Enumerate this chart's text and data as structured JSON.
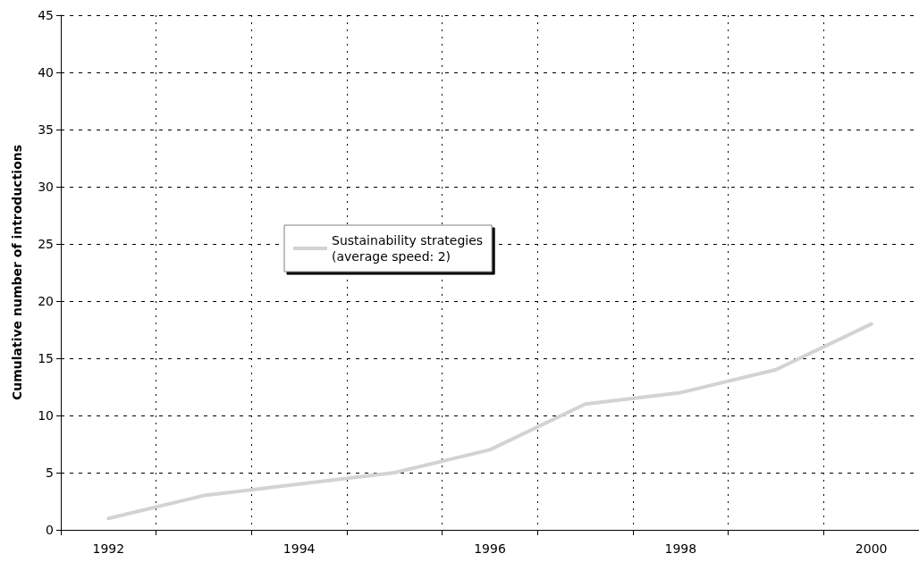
{
  "chart_data": {
    "type": "line",
    "ylabel": "Cumulative number of introductions",
    "categories": [
      "1992",
      null,
      "1994",
      null,
      "1996",
      null,
      "1998",
      null,
      "2000"
    ],
    "series": [
      {
        "name": "Sustainability strategies\n(average speed: 2)",
        "color": "#d3d3d3",
        "values": [
          1,
          3,
          4,
          5,
          7,
          11,
          12,
          14,
          18
        ]
      }
    ],
    "ylim": [
      0,
      45
    ],
    "yticks": [
      0,
      5,
      10,
      15,
      20,
      25,
      30,
      35,
      40,
      45
    ],
    "grid": true,
    "legend": "center",
    "marker": "none",
    "line_style": "solid"
  }
}
